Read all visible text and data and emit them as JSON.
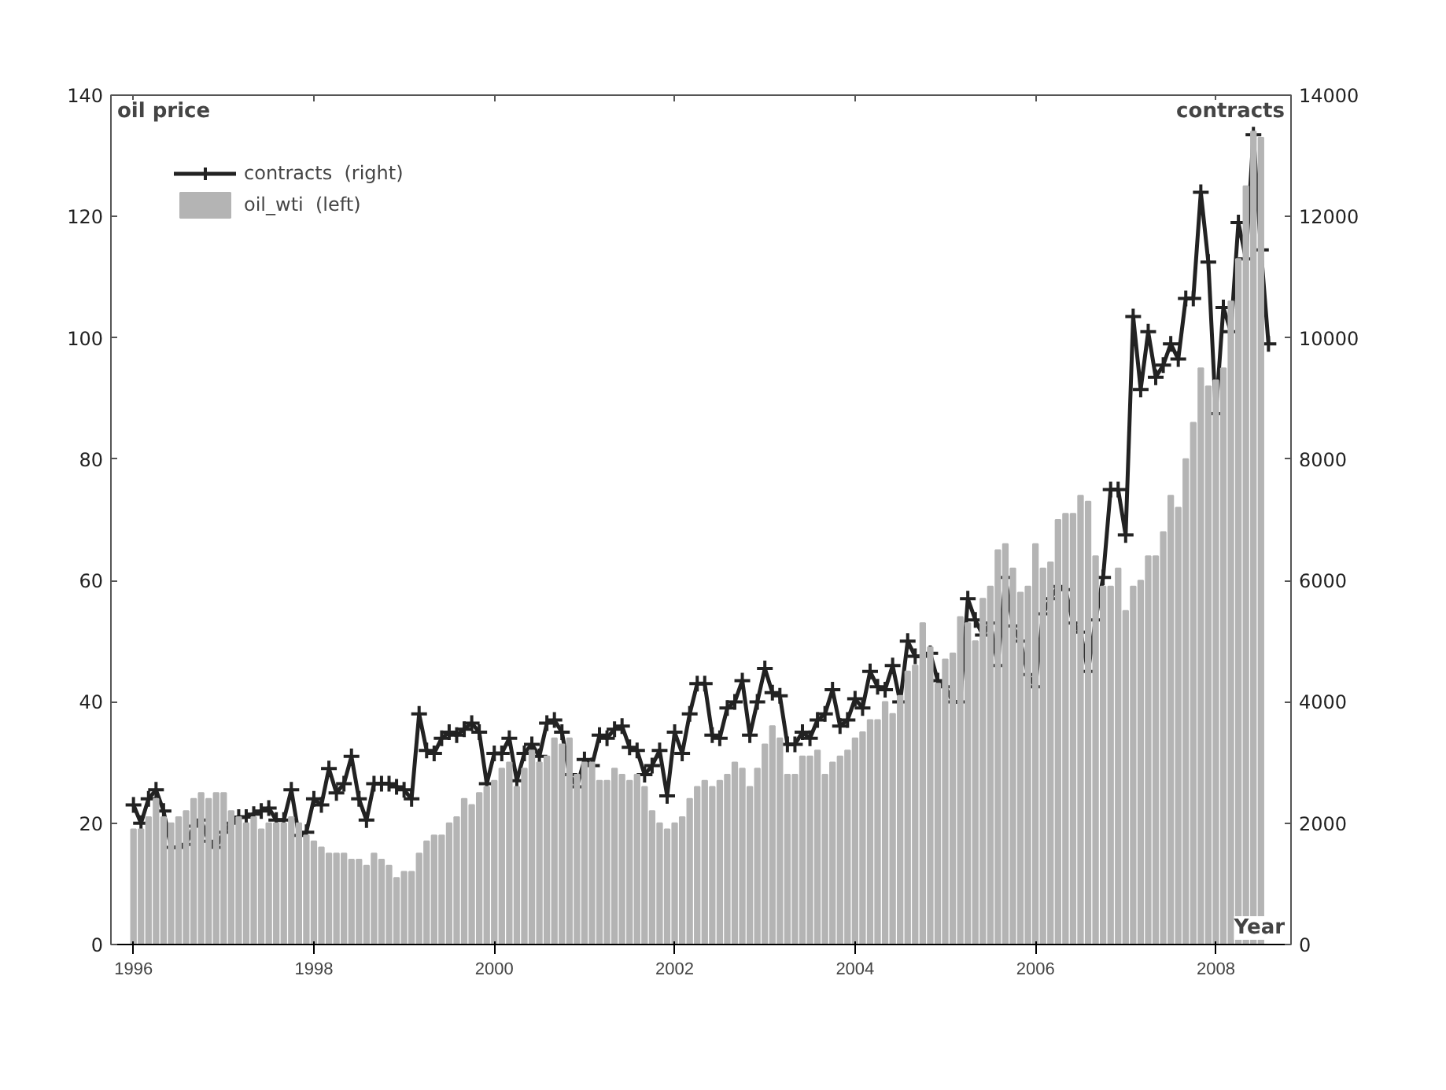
{
  "chart_data": {
    "type": "bar",
    "xlabel": "Year",
    "ylabel": "oil price",
    "y2label": "contracts",
    "x": [
      "1996-01",
      "1996-02",
      "1996-03",
      "1996-04",
      "1996-05",
      "1996-06",
      "1996-07",
      "1996-08",
      "1996-09",
      "1996-10",
      "1996-11",
      "1996-12",
      "1997-01",
      "1997-02",
      "1997-03",
      "1997-04",
      "1997-05",
      "1997-06",
      "1997-07",
      "1997-08",
      "1997-09",
      "1997-10",
      "1997-11",
      "1997-12",
      "1998-01",
      "1998-02",
      "1998-03",
      "1998-04",
      "1998-05",
      "1998-06",
      "1998-07",
      "1998-08",
      "1998-09",
      "1998-10",
      "1998-11",
      "1998-12",
      "1999-01",
      "1999-02",
      "1999-03",
      "1999-04",
      "1999-05",
      "1999-06",
      "1999-07",
      "1999-08",
      "1999-09",
      "1999-10",
      "1999-11",
      "1999-12",
      "2000-01",
      "2000-02",
      "2000-03",
      "2000-04",
      "2000-05",
      "2000-06",
      "2000-07",
      "2000-08",
      "2000-09",
      "2000-10",
      "2000-11",
      "2000-12",
      "2001-01",
      "2001-02",
      "2001-03",
      "2001-04",
      "2001-05",
      "2001-06",
      "2001-07",
      "2001-08",
      "2001-09",
      "2001-10",
      "2001-11",
      "2001-12",
      "2002-01",
      "2002-02",
      "2002-03",
      "2002-04",
      "2002-05",
      "2002-06",
      "2002-07",
      "2002-08",
      "2002-09",
      "2002-10",
      "2002-11",
      "2002-12",
      "2003-01",
      "2003-02",
      "2003-03",
      "2003-04",
      "2003-05",
      "2003-06",
      "2003-07",
      "2003-08",
      "2003-09",
      "2003-10",
      "2003-11",
      "2003-12",
      "2004-01",
      "2004-02",
      "2004-03",
      "2004-04",
      "2004-05",
      "2004-06",
      "2004-07",
      "2004-08",
      "2004-09",
      "2004-10",
      "2004-11",
      "2004-12",
      "2005-01",
      "2005-02",
      "2005-03",
      "2005-04",
      "2005-05",
      "2005-06",
      "2005-07",
      "2005-08",
      "2005-09",
      "2005-10",
      "2005-11",
      "2005-12",
      "2006-01",
      "2006-02",
      "2006-03",
      "2006-04",
      "2006-05",
      "2006-06",
      "2006-07",
      "2006-08",
      "2006-09",
      "2006-10",
      "2006-11",
      "2006-12",
      "2007-01",
      "2007-02",
      "2007-03",
      "2007-04",
      "2007-05",
      "2007-06",
      "2007-07",
      "2007-08",
      "2007-09",
      "2007-10",
      "2007-11",
      "2007-12",
      "2008-01",
      "2008-02",
      "2008-03",
      "2008-04",
      "2008-05",
      "2008-06",
      "2008-07",
      "2008-08"
    ],
    "xlim": [
      "1995-10",
      "2008-11"
    ],
    "xticks": [
      "1996",
      "1998",
      "2000",
      "2002",
      "2004",
      "2006",
      "2008"
    ],
    "ylim": [
      0,
      140
    ],
    "yticks": [
      0,
      20,
      40,
      60,
      80,
      100,
      120,
      140
    ],
    "y2lim": [
      0,
      14000
    ],
    "y2ticks": [
      0,
      2000,
      4000,
      6000,
      8000,
      10000,
      12000,
      14000
    ],
    "legend": "top left",
    "grid": false,
    "series": [
      {
        "name": "contracts  (right)",
        "type": "line",
        "axis": "y2",
        "color": "#222222",
        "marker": "cross",
        "line_style": "solid",
        "values": [
          2300,
          2000,
          2400,
          2550,
          2200,
          1600,
          1600,
          1650,
          1950,
          2050,
          1700,
          1600,
          1850,
          2000,
          2100,
          2100,
          2150,
          2200,
          2250,
          2050,
          2050,
          2550,
          1800,
          1850,
          2400,
          2300,
          2900,
          2500,
          2650,
          3100,
          2400,
          2050,
          2650,
          2650,
          2650,
          2600,
          2550,
          2400,
          3800,
          3200,
          3150,
          3400,
          3500,
          3450,
          3550,
          3650,
          3500,
          2650,
          3150,
          3150,
          3400,
          2700,
          3150,
          3300,
          3100,
          3650,
          3700,
          3500,
          2800,
          2600,
          3050,
          2950,
          3450,
          3400,
          3550,
          3600,
          3250,
          3200,
          2800,
          2950,
          3200,
          2450,
          3500,
          3150,
          3800,
          4300,
          4300,
          3450,
          3400,
          3900,
          4000,
          4350,
          3450,
          4000,
          4550,
          4150,
          4100,
          3300,
          3300,
          3500,
          3400,
          3700,
          3800,
          4200,
          3600,
          3700,
          4050,
          3900,
          4500,
          4250,
          4200,
          4600,
          4000,
          5000,
          4750,
          4750,
          4800,
          4350,
          4250,
          4000,
          4000,
          5700,
          5350,
          5100,
          5300,
          4600,
          6050,
          5250,
          5000,
          4450,
          4250,
          5450,
          5700,
          5900,
          5850,
          5300,
          5150,
          4500,
          5350,
          6050,
          7500,
          7500,
          6750,
          10350,
          9150,
          10100,
          9350,
          9550,
          9900,
          9650,
          10650,
          10650,
          12400,
          11250,
          8750,
          10500,
          10100,
          11900,
          11300,
          13350,
          11450,
          9900
        ]
      },
      {
        "name": "oil_wti  (left)",
        "color": "#b4b4b4",
        "values": [
          19,
          19,
          21,
          24,
          21,
          20,
          21,
          22,
          24,
          25,
          24,
          25,
          25,
          22,
          21,
          20,
          21,
          19,
          20,
          20,
          20,
          21,
          20,
          18,
          17,
          16,
          15,
          15,
          15,
          14,
          14,
          13,
          15,
          14,
          13,
          11,
          12,
          12,
          15,
          17,
          18,
          18,
          20,
          21,
          24,
          23,
          25,
          26,
          27,
          29,
          30,
          26,
          29,
          32,
          30,
          31,
          34,
          33,
          34,
          28,
          30,
          30,
          27,
          27,
          29,
          28,
          27,
          28,
          26,
          22,
          20,
          19,
          20,
          21,
          24,
          26,
          27,
          26,
          27,
          28,
          30,
          29,
          26,
          29,
          33,
          36,
          34,
          28,
          28,
          31,
          31,
          32,
          28,
          30,
          31,
          32,
          34,
          35,
          37,
          37,
          40,
          38,
          41,
          45,
          46,
          53,
          49,
          43,
          47,
          48,
          54,
          53,
          50,
          57,
          59,
          65,
          66,
          62,
          58,
          59,
          66,
          62,
          63,
          70,
          71,
          71,
          74,
          73,
          64,
          59,
          59,
          62,
          55,
          59,
          60,
          64,
          64,
          68,
          74,
          72,
          80,
          86,
          95,
          92,
          93,
          95,
          106,
          113,
          125,
          134,
          133,
          null
        ]
      }
    ]
  }
}
